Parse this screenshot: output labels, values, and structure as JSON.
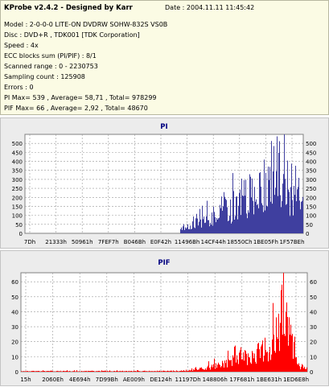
{
  "info": {
    "title": "KProbe v2.4.2 - Designed by Karr",
    "date": "Date : 2004.11.11 11:45:42",
    "lines": [
      "Model : 2-0-0-0 LITE-ON DVDRW SOHW-832S  VS0B",
      "Disc : DVD+R , TDK001 [TDK Corporation]",
      "Speed : 4x",
      "ECC blocks sum (PI/PIF) : 8/1",
      "Scanned range : 0 - 2230753",
      "Sampling count : 125908",
      "Errors : 0",
      "PI Max= 539 , Average= 58,71 , Total= 978299",
      "PIF Max= 66 , Average= 2,92 , Total= 48670"
    ]
  },
  "colors": {
    "pi_bar": "#3f3f9f",
    "pif_bar": "#ff0000",
    "grid": "#999999",
    "panel_bg": "#ececec",
    "info_bg": "#fbfbe4"
  },
  "chart_data": [
    {
      "type": "bar",
      "title": "PI",
      "ylim": [
        0,
        550
      ],
      "yticks": [
        0,
        50,
        100,
        150,
        200,
        250,
        300,
        350,
        400,
        450,
        500
      ],
      "xticks": [
        "7Dh",
        "21333h",
        "50961h",
        "7FEF7h",
        "B046Bh",
        "E0F42h",
        "11496Bh",
        "14CF44h",
        "18550Ch",
        "1BE05Fh",
        "1F57BEh"
      ],
      "grid": true,
      "legend": "none",
      "profile": [
        [
          0,
          0
        ],
        [
          0.557,
          0
        ],
        [
          0.56,
          30
        ],
        [
          0.6,
          58
        ],
        [
          0.64,
          70
        ],
        [
          0.67,
          90
        ],
        [
          0.7,
          150
        ],
        [
          0.72,
          170
        ],
        [
          0.74,
          150
        ],
        [
          0.76,
          200
        ],
        [
          0.79,
          230
        ],
        [
          0.82,
          240
        ],
        [
          0.84,
          250
        ],
        [
          0.86,
          220
        ],
        [
          0.88,
          300
        ],
        [
          0.9,
          350
        ],
        [
          0.92,
          380
        ],
        [
          0.935,
          330
        ],
        [
          0.95,
          270
        ],
        [
          0.96,
          200
        ],
        [
          0.975,
          240
        ],
        [
          1.0,
          200
        ]
      ],
      "peak_max": 539,
      "bar_color": "#3f3f9f"
    },
    {
      "type": "bar",
      "title": "PIF",
      "ylim": [
        0,
        66
      ],
      "yticks": [
        0,
        10,
        20,
        30,
        40,
        50,
        60
      ],
      "xticks": [
        "15h",
        "2060Eh",
        "4E694h",
        "7D99Bh",
        "AE009h",
        "DE124h",
        "11197Dh",
        "148806h",
        "17F681h",
        "1BE631h",
        "1ED6E8h"
      ],
      "grid": true,
      "legend": "none",
      "profile": [
        [
          0,
          0.4
        ],
        [
          0.55,
          0.5
        ],
        [
          0.6,
          1.5
        ],
        [
          0.65,
          3
        ],
        [
          0.7,
          5
        ],
        [
          0.74,
          8
        ],
        [
          0.78,
          12
        ],
        [
          0.82,
          14
        ],
        [
          0.86,
          17
        ],
        [
          0.88,
          22
        ],
        [
          0.9,
          26
        ],
        [
          0.92,
          28
        ],
        [
          0.935,
          30
        ],
        [
          0.95,
          20
        ],
        [
          0.96,
          10
        ],
        [
          0.975,
          4
        ],
        [
          1.0,
          3
        ]
      ],
      "peak_max": 66,
      "bar_color": "#ff0000"
    }
  ]
}
